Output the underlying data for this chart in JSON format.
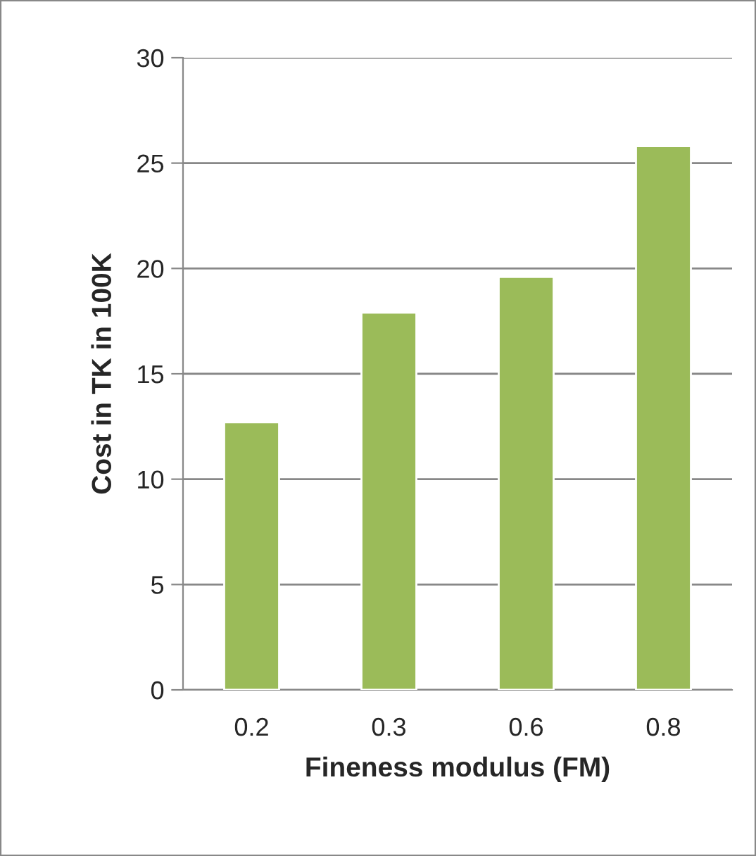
{
  "chart_data": {
    "type": "bar",
    "xlabel": "Fineness modulus (FM)",
    "ylabel": "Cost in TK in 100K",
    "categories": [
      "0.2",
      "0.3",
      "0.6",
      "0.8"
    ],
    "values": [
      12.7,
      17.9,
      19.6,
      25.8
    ],
    "color": "#9bbb59",
    "ylim": [
      0,
      30
    ],
    "yticks": [
      0,
      5,
      10,
      15,
      20,
      25,
      30
    ],
    "grid": "y",
    "legend": false
  }
}
